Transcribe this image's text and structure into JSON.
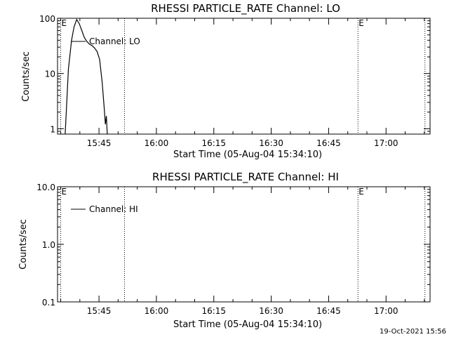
{
  "footer_date": "19-Oct-2021 15:56",
  "chart_data": [
    {
      "type": "line",
      "title": "RHESSI PARTICLE_RATE Channel: LO",
      "xlabel": "Start Time (05-Aug-04 15:34:10)",
      "ylabel": "Counts/sec",
      "y_scale": "log",
      "ylim": [
        0.8,
        100
      ],
      "ytick_labels": [
        "100",
        "10",
        "1"
      ],
      "y_ticks": [
        100,
        10,
        1
      ],
      "xlim": [
        "15:34:10",
        "17:11:30"
      ],
      "x_ticks": [
        "15:45",
        "16:00",
        "16:15",
        "16:30",
        "16:45",
        "17:00"
      ],
      "markers": [
        {
          "label": "E",
          "time": "15:35:00"
        },
        {
          "label": "",
          "time": "15:51:40"
        },
        {
          "label": "E",
          "time": "16:52:40"
        },
        {
          "label": "",
          "time": "17:10:10"
        }
      ],
      "legend": {
        "entries": [
          "Channel: LO"
        ],
        "placement": "top-left"
      },
      "series": [
        {
          "name": "Channel: LO",
          "points": [
            [
              "15:36:10",
              0.8
            ],
            [
              "15:37:00",
              12
            ],
            [
              "15:37:50",
              40
            ],
            [
              "15:38:30",
              70
            ],
            [
              "15:39:10",
              95
            ],
            [
              "15:39:50",
              80
            ],
            [
              "15:40:30",
              60
            ],
            [
              "15:41:10",
              45
            ],
            [
              "15:41:50",
              38
            ],
            [
              "15:42:30",
              34
            ],
            [
              "15:43:10",
              32
            ],
            [
              "15:43:50",
              29
            ],
            [
              "15:44:30",
              25
            ],
            [
              "15:45:10",
              18
            ],
            [
              "15:45:50",
              7
            ],
            [
              "15:46:20",
              2.5
            ],
            [
              "15:46:40",
              1.2
            ],
            [
              "15:46:55",
              1.7
            ],
            [
              "15:47:10",
              0.8
            ]
          ]
        }
      ]
    },
    {
      "type": "line",
      "title": "RHESSI PARTICLE_RATE Channel: HI",
      "xlabel": "Start Time (05-Aug-04 15:34:10)",
      "ylabel": "Counts/sec",
      "y_scale": "log",
      "ylim": [
        0.1,
        10
      ],
      "ytick_labels": [
        "10.0",
        "1.0",
        "0.1"
      ],
      "y_ticks": [
        10,
        1,
        0.1
      ],
      "xlim": [
        "15:34:10",
        "17:11:30"
      ],
      "x_ticks": [
        "15:45",
        "16:00",
        "16:15",
        "16:30",
        "16:45",
        "17:00"
      ],
      "markers": [
        {
          "label": "E",
          "time": "15:35:00"
        },
        {
          "label": "",
          "time": "15:51:40"
        },
        {
          "label": "E",
          "time": "16:52:40"
        },
        {
          "label": "",
          "time": "17:10:10"
        }
      ],
      "legend": {
        "entries": [
          "Channel: HI"
        ],
        "placement": "top-left"
      },
      "series": [
        {
          "name": "Channel: HI",
          "points": []
        }
      ]
    }
  ]
}
